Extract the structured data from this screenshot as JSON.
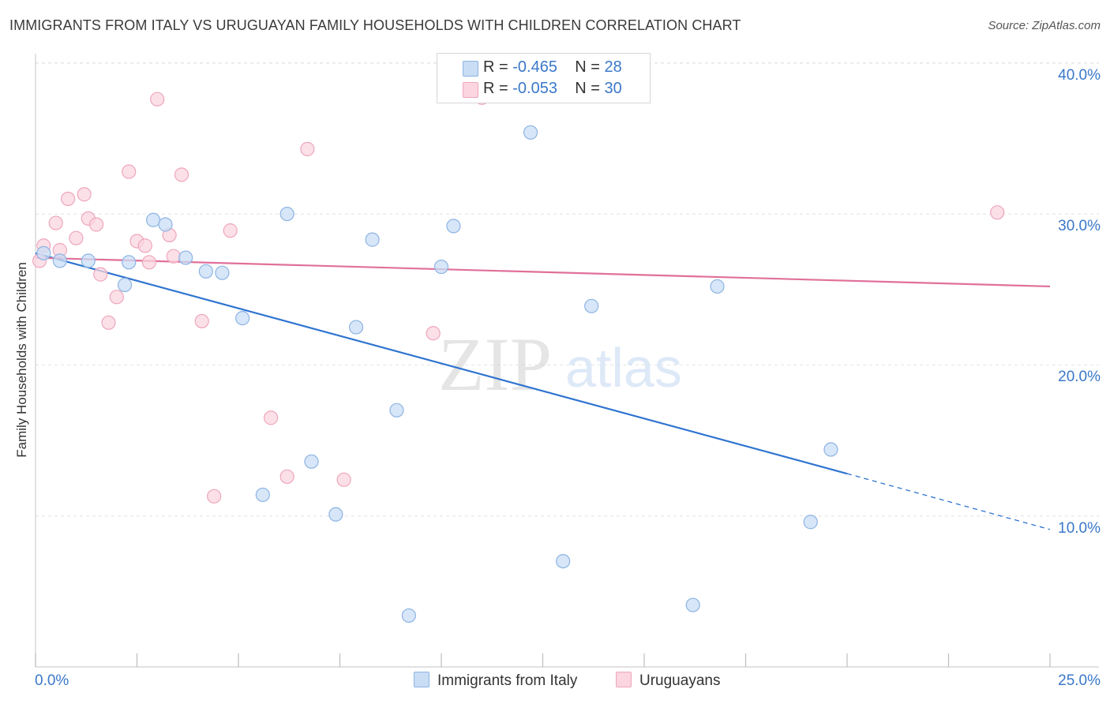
{
  "title": "IMMIGRANTS FROM ITALY VS URUGUAYAN FAMILY HOUSEHOLDS WITH CHILDREN CORRELATION CHART",
  "source": "Source: ZipAtlas.com",
  "watermark": {
    "zip": "ZIP",
    "atlas": "atlas"
  },
  "stats": [
    {
      "r_label": "R =",
      "r": "-0.465",
      "n_label": "N =",
      "n": "28",
      "color": "#a8c8f0"
    },
    {
      "r_label": "R =",
      "r": "-0.053",
      "n_label": "N =",
      "n": "30",
      "color": "#f6b9cb"
    }
  ],
  "colors": {
    "blue_fill": "#c9ddf5",
    "blue_stroke": "#8db4e3",
    "blue_line": "#2f74d0",
    "pink_fill": "#fbd5df",
    "pink_stroke": "#eea6bd",
    "pink_line": "#e0709a",
    "grid": "#e2e2e2",
    "tick_text": "#3a78c8"
  },
  "chart_data": {
    "type": "scatter",
    "title": "IMMIGRANTS FROM ITALY VS URUGUAYAN FAMILY HOUSEHOLDS WITH CHILDREN CORRELATION CHART",
    "xlabel": "",
    "ylabel": "Family Households with Children",
    "xlim": [
      0,
      25
    ],
    "ylim": [
      0,
      40
    ],
    "x_tick_labels": [
      "0.0%",
      "25.0%"
    ],
    "y_ticks": [
      10,
      20,
      30,
      40
    ],
    "y_tick_labels": [
      "10.0%",
      "20.0%",
      "30.0%",
      "40.0%"
    ],
    "grid": true,
    "legend_position": "bottom",
    "series": [
      {
        "name": "Immigrants from Italy",
        "color": "#a8c8f0",
        "points": [
          [
            0.2,
            27.4
          ],
          [
            1.3,
            26.9
          ],
          [
            2.2,
            25.3
          ],
          [
            2.3,
            26.8
          ],
          [
            2.9,
            29.6
          ],
          [
            3.2,
            29.3
          ],
          [
            3.7,
            27.1
          ],
          [
            4.2,
            26.2
          ],
          [
            4.6,
            26.1
          ],
          [
            5.1,
            23.1
          ],
          [
            5.6,
            11.4
          ],
          [
            6.2,
            30.0
          ],
          [
            6.8,
            13.6
          ],
          [
            7.4,
            10.1
          ],
          [
            7.9,
            22.5
          ],
          [
            8.3,
            28.3
          ],
          [
            8.9,
            17.0
          ],
          [
            9.2,
            3.4
          ],
          [
            10.0,
            26.5
          ],
          [
            10.3,
            29.2
          ],
          [
            12.2,
            35.4
          ],
          [
            13.0,
            7.0
          ],
          [
            13.7,
            23.9
          ],
          [
            16.2,
            4.1
          ],
          [
            16.8,
            25.2
          ],
          [
            19.1,
            9.6
          ],
          [
            19.6,
            14.4
          ],
          [
            0.6,
            26.9
          ]
        ],
        "trend": {
          "x": [
            0,
            20.0
          ],
          "y": [
            27.4,
            12.8
          ],
          "dashed_to": [
            25.0,
            9.1
          ]
        }
      },
      {
        "name": "Uruguayans",
        "color": "#f6b9cb",
        "points": [
          [
            0.1,
            26.9
          ],
          [
            0.2,
            27.9
          ],
          [
            0.5,
            29.4
          ],
          [
            0.6,
            27.6
          ],
          [
            0.8,
            31.0
          ],
          [
            1.0,
            28.4
          ],
          [
            1.2,
            31.3
          ],
          [
            1.3,
            29.7
          ],
          [
            1.5,
            29.3
          ],
          [
            1.6,
            26.0
          ],
          [
            1.8,
            22.8
          ],
          [
            2.0,
            24.5
          ],
          [
            2.3,
            32.8
          ],
          [
            2.5,
            28.2
          ],
          [
            2.7,
            27.9
          ],
          [
            2.8,
            26.8
          ],
          [
            3.0,
            37.6
          ],
          [
            3.3,
            28.6
          ],
          [
            3.4,
            27.2
          ],
          [
            3.6,
            32.6
          ],
          [
            4.1,
            22.9
          ],
          [
            4.4,
            11.3
          ],
          [
            4.8,
            28.9
          ],
          [
            5.8,
            16.5
          ],
          [
            6.2,
            12.6
          ],
          [
            6.7,
            34.3
          ],
          [
            7.6,
            12.4
          ],
          [
            9.8,
            22.1
          ],
          [
            11.0,
            37.7
          ],
          [
            23.7,
            30.1
          ]
        ],
        "trend": {
          "x": [
            0,
            25.0
          ],
          "y": [
            27.1,
            25.2
          ]
        }
      }
    ]
  }
}
